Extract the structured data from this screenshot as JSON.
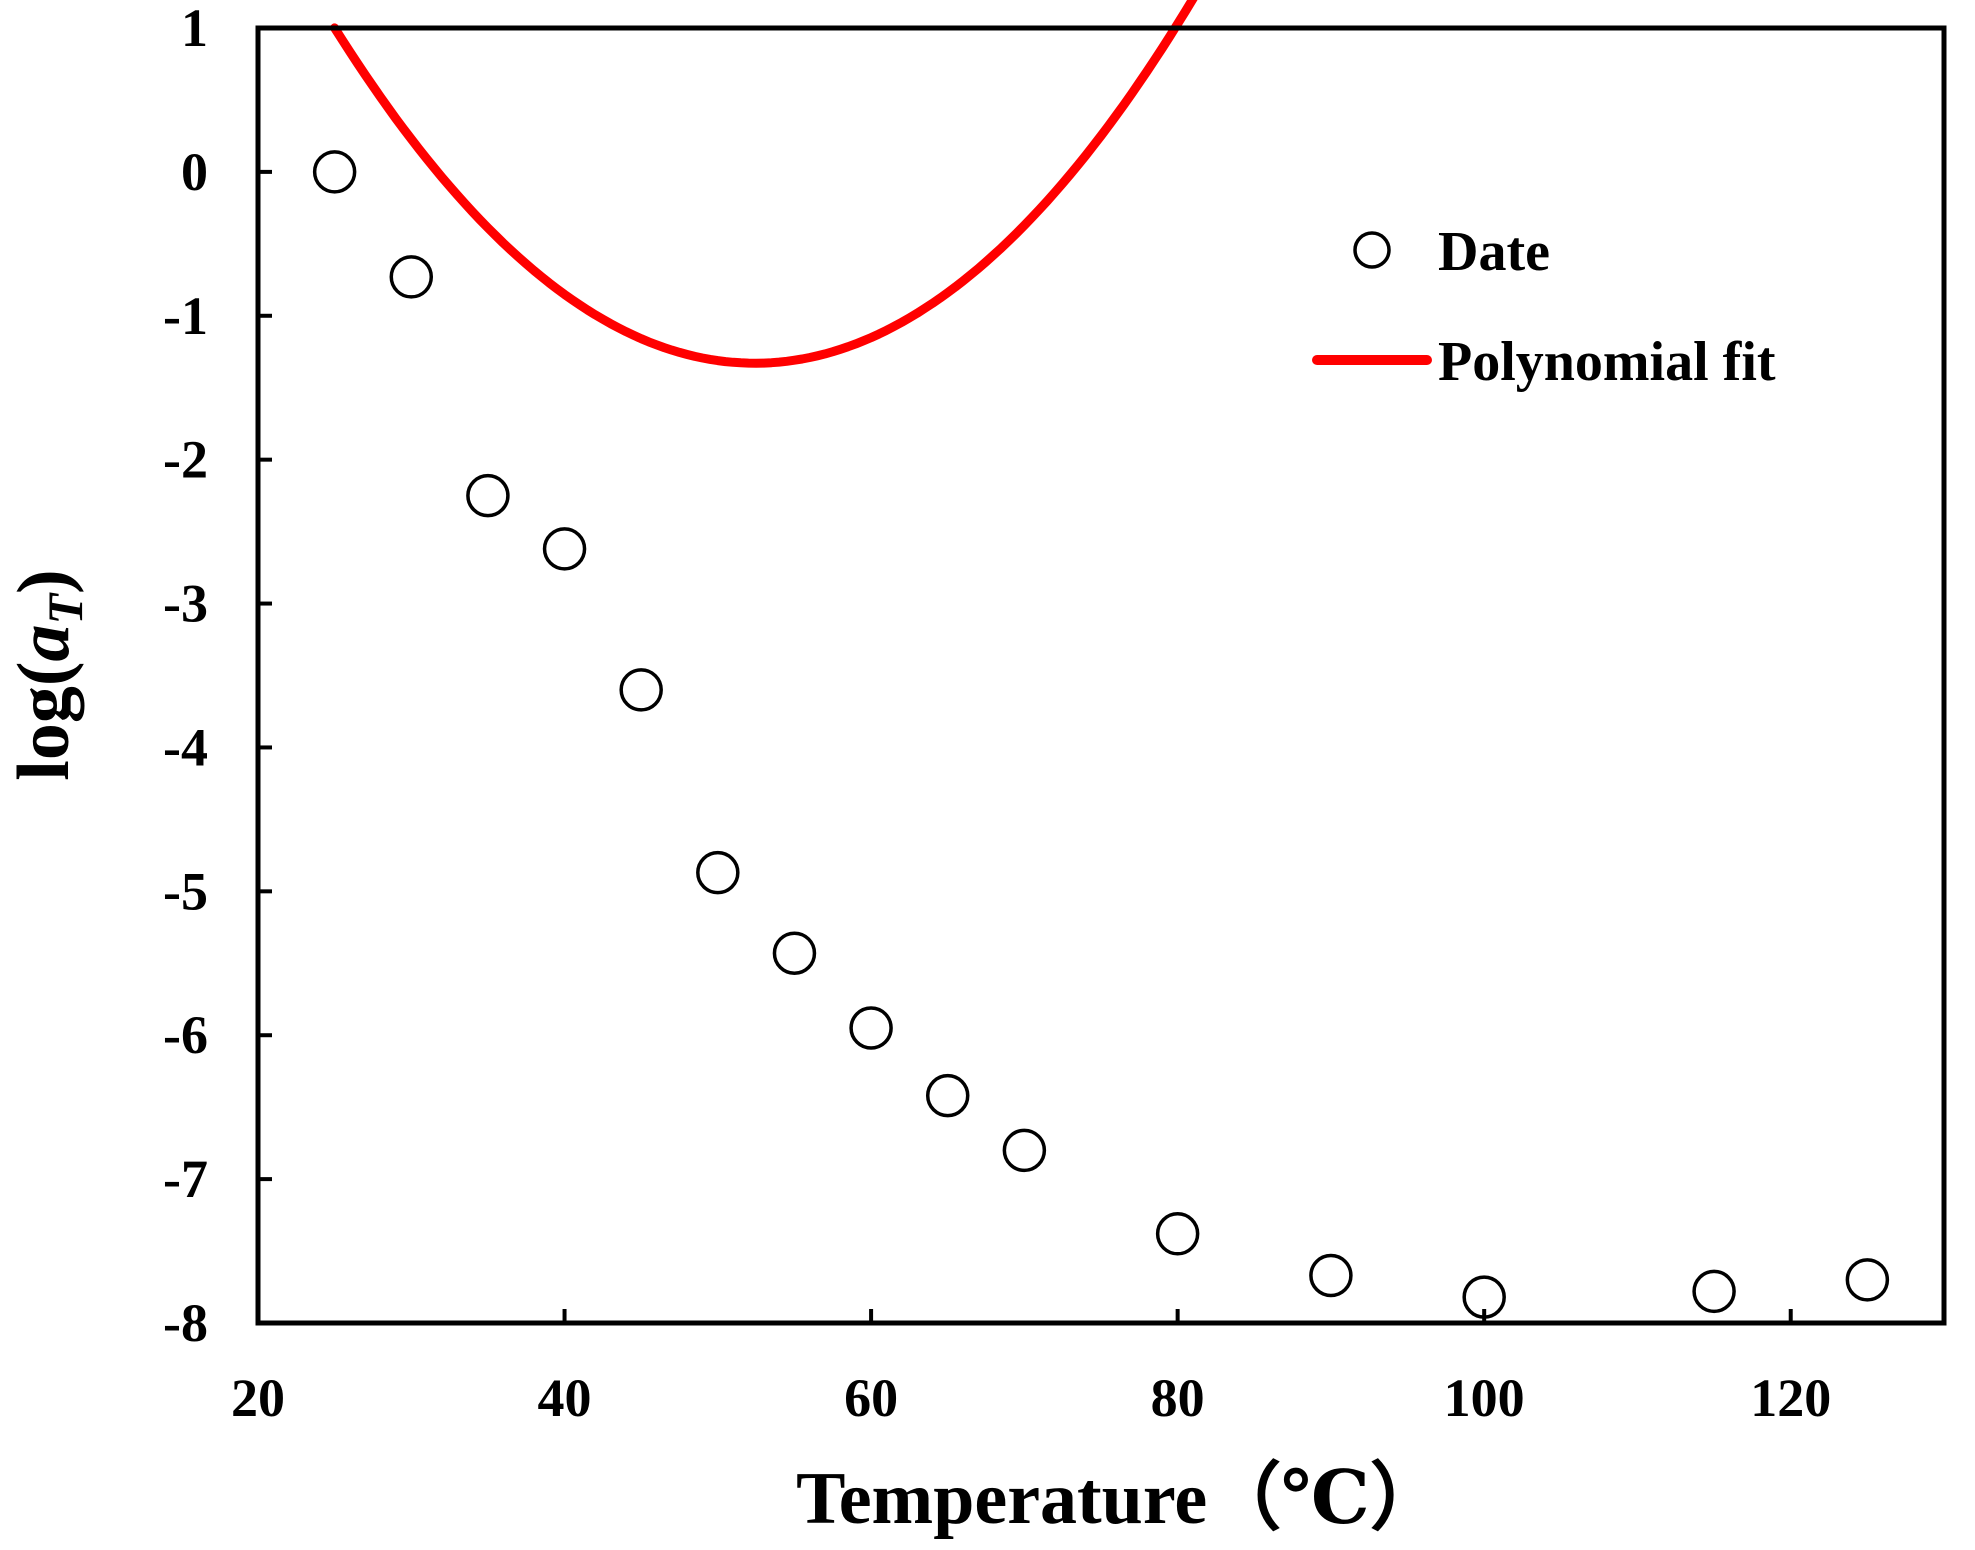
{
  "chart_data": {
    "type": "scatter",
    "xlabel": "Temperature（℃）",
    "ylabel": {
      "prefix": "log(",
      "var": "a",
      "sub": "T",
      "suffix": ")"
    },
    "xlim": [
      20,
      130
    ],
    "ylim": [
      -8,
      1
    ],
    "xticks": [
      20,
      40,
      60,
      80,
      100,
      120
    ],
    "yticks": [
      1,
      0,
      -1,
      -2,
      -3,
      -4,
      -5,
      -6,
      -7,
      -8
    ],
    "grid": false,
    "legend_position": "top-right",
    "series": [
      {
        "name": "Date",
        "kind": "markers",
        "marker": "open-circle",
        "color": "#000000",
        "x": [
          25,
          30,
          35,
          40,
          45,
          50,
          55,
          60,
          65,
          70,
          80,
          90,
          100,
          115,
          125
        ],
        "y": [
          0.0,
          -0.73,
          -2.25,
          -2.62,
          -3.6,
          -4.87,
          -5.43,
          -5.95,
          -6.42,
          -6.8,
          -7.38,
          -7.67,
          -7.82,
          -7.78,
          -7.7
        ]
      },
      {
        "name": "Polynomial fit",
        "kind": "line",
        "color": "#ff0000",
        "coefficients": [
          7.1885,
          -0.325,
          0.0031
        ],
        "x_range": [
          25,
          125
        ]
      }
    ]
  }
}
